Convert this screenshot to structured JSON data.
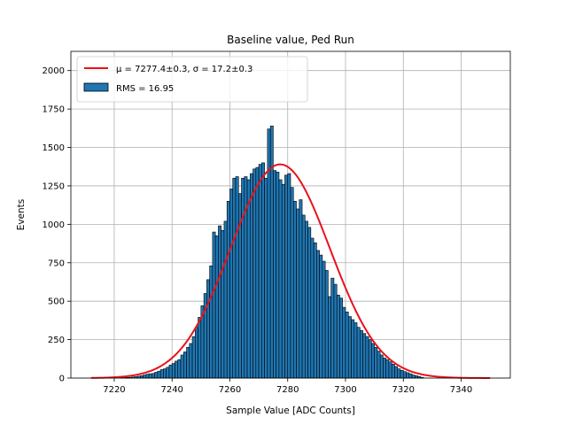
{
  "chart_data": {
    "type": "histogram",
    "title": "Baseline value, Ped Run",
    "xlabel": "Sample Value [ADC Counts]",
    "ylabel": "Events",
    "xlim": [
      7205,
      7357
    ],
    "ylim": [
      0,
      2125
    ],
    "xticks": [
      7220,
      7240,
      7260,
      7280,
      7300,
      7320,
      7340
    ],
    "yticks": [
      0,
      250,
      500,
      750,
      1000,
      1250,
      1500,
      1750,
      2000
    ],
    "grid": true,
    "legend_position": "top-left",
    "bin_width": 1,
    "bins_start": 7222,
    "counts": [
      2,
      3,
      4,
      5,
      7,
      9,
      12,
      15,
      20,
      25,
      28,
      30,
      38,
      45,
      55,
      60,
      70,
      85,
      95,
      110,
      120,
      150,
      170,
      200,
      225,
      270,
      330,
      395,
      470,
      550,
      640,
      730,
      950,
      925,
      990,
      960,
      1020,
      1150,
      1230,
      1300,
      1310,
      1200,
      1300,
      1310,
      1290,
      1330,
      1360,
      1370,
      1390,
      1400,
      1300,
      1620,
      1640,
      1350,
      1340,
      1290,
      1260,
      1320,
      1330,
      1240,
      1150,
      1100,
      1160,
      1060,
      1020,
      980,
      910,
      880,
      830,
      800,
      760,
      700,
      530,
      650,
      610,
      540,
      520,
      460,
      430,
      400,
      380,
      360,
      330,
      310,
      290,
      270,
      250,
      225,
      200,
      175,
      150,
      130,
      120,
      105,
      90,
      75,
      60,
      50,
      42,
      35,
      28,
      20,
      15,
      10,
      5
    ],
    "fit": {
      "type": "gaussian",
      "mu": 7277.4,
      "sigma": 17.2,
      "peak": 1390,
      "x_range": [
        7212,
        7350
      ],
      "color": "#e8121c"
    },
    "bar_color": "#1f77b4",
    "legend": [
      {
        "label": "μ = 7277.4±0.3, σ = 17.2±0.3",
        "kind": "line",
        "color": "#e8121c"
      },
      {
        "label": "RMS = 16.95",
        "kind": "patch",
        "color": "#1f77b4"
      }
    ]
  }
}
